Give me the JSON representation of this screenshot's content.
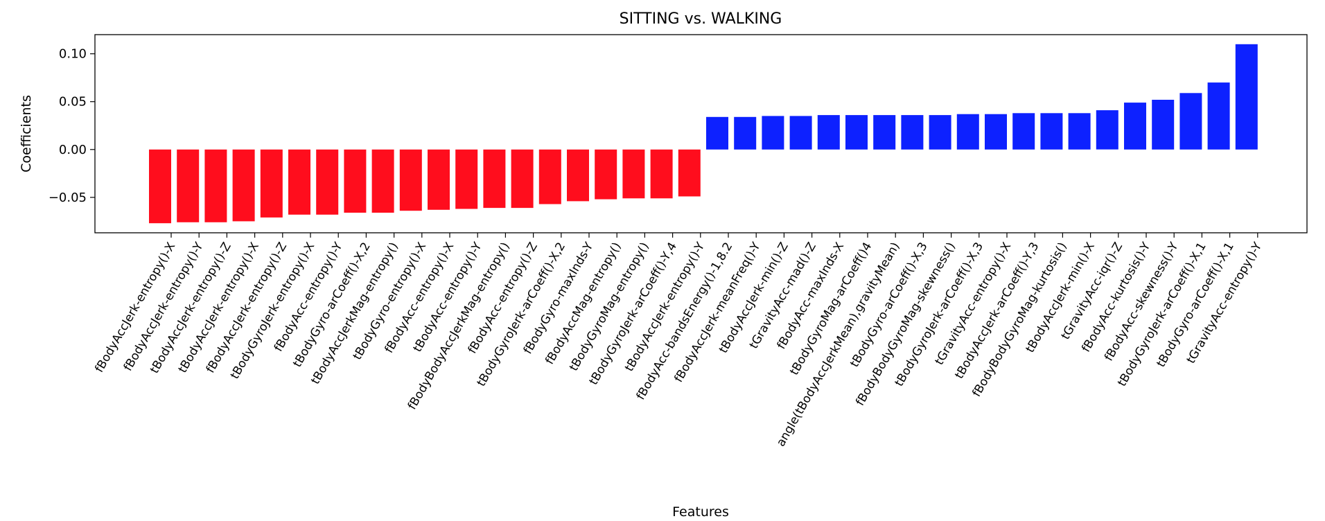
{
  "chart_data": {
    "type": "bar",
    "title": "SITTING vs. WALKING",
    "xlabel": "Features",
    "ylabel": "Coefficients",
    "ylim": [
      -0.087,
      0.12
    ],
    "yticks": [
      "0.10",
      "0.05",
      "0.00",
      "−0.05"
    ],
    "ytick_values": [
      0.1,
      0.05,
      0.0,
      -0.05
    ],
    "grid": false,
    "colors": {
      "negative": "#ff0d1d",
      "positive": "#0d21ff"
    },
    "categories": [
      "fBodyAccJerk-entropy()-X",
      "fBodyAccJerk-entropy()-Y",
      "tBodyAccJerk-entropy()-Z",
      "tBodyAccJerk-entropy()-X",
      "fBodyAccJerk-entropy()-Z",
      "tBodyGyroJerk-entropy()-X",
      "fBodyAcc-entropy()-Y",
      "tBodyGyro-arCoeff()-X,2",
      "tBodyAccJerkMag-entropy()",
      "tBodyGyro-entropy()-X",
      "fBodyAcc-entropy()-X",
      "tBodyAcc-entropy()-Y",
      "fBodyBodyAccJerkMag-entropy()",
      "fBodyAcc-entropy()-Z",
      "tBodyGyroJerk-arCoeff()-X,2",
      "fBodyGyro-maxInds-Y",
      "fBodyAccMag-entropy()",
      "tBodyGyroMag-entropy()",
      "tBodyGyroJerk-arCoeff()-Y,4",
      "tBodyAccJerk-entropy()-Y",
      "fBodyAcc-bandsEnergy()-1,8.2",
      "fBodyAccJerk-meanFreq()-Y",
      "tBodyAccJerk-min()-Z",
      "tGravityAcc-mad()-Z",
      "fBodyAcc-maxInds-X",
      "tBodyGyroMag-arCoeff()4",
      "angle(tBodyAccJerkMean),gravityMean)",
      "tBodyGyro-arCoeff()-X,3",
      "fBodyBodyGyroMag-skewness()",
      "tBodyGyroJerk-arCoeff()-X,3",
      "tGravityAcc-entropy()-X",
      "tBodyAccJerk-arCoeff()-Y,3",
      "fBodyBodyGyroMag-kurtosis()",
      "tBodyAccJerk-min()-X",
      "tGravityAcc-iqr()-Z",
      "fBodyAcc-kurtosis()-Y",
      "fBodyAcc-skewness()-Y",
      "tBodyGyroJerk-arCoeff()-X,1",
      "tBodyGyro-arCoeff()-X,1",
      "tGravityAcc-entropy()-Y"
    ],
    "values": [
      -0.077,
      -0.076,
      -0.076,
      -0.075,
      -0.071,
      -0.068,
      -0.068,
      -0.066,
      -0.066,
      -0.064,
      -0.063,
      -0.062,
      -0.061,
      -0.061,
      -0.057,
      -0.054,
      -0.052,
      -0.051,
      -0.051,
      -0.049,
      0.034,
      0.034,
      0.035,
      0.035,
      0.036,
      0.036,
      0.036,
      0.036,
      0.036,
      0.037,
      0.037,
      0.038,
      0.038,
      0.038,
      0.041,
      0.049,
      0.052,
      0.059,
      0.07,
      0.11
    ]
  }
}
